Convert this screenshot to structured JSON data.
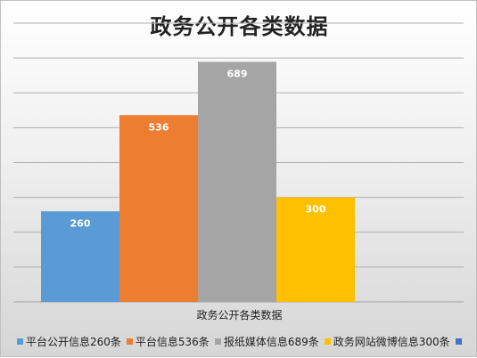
{
  "chart_data": {
    "type": "bar",
    "title": "政务公开各类数据",
    "xlabel": "政务公开各类数据",
    "ylabel": "",
    "ylim": [
      0,
      800
    ],
    "grid": true,
    "legend_position": "bottom",
    "categories": [
      "政务公开各类数据"
    ],
    "series": [
      {
        "name": "平台公开信息260条",
        "values": [
          260
        ],
        "color": "#5b9bd5",
        "label": "260"
      },
      {
        "name": "平台信息536条",
        "values": [
          536
        ],
        "color": "#ed7d31",
        "label": "536"
      },
      {
        "name": "报纸媒体信息689条",
        "values": [
          689
        ],
        "color": "#a5a5a5",
        "label": "689"
      },
      {
        "name": "政务网站微博信息300条",
        "values": [
          300
        ],
        "color": "#ffc000",
        "label": "300"
      },
      {
        "name": "",
        "values": [
          0
        ],
        "color": "#4472c4",
        "label": ""
      }
    ]
  }
}
